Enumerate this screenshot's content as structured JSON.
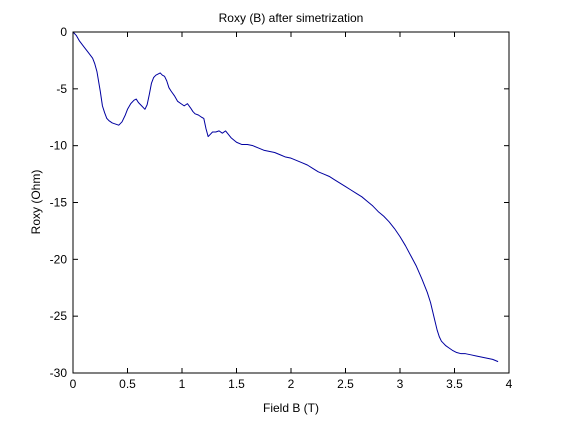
{
  "chart_data": {
    "type": "line",
    "title": "Roxy (B) after simetrization",
    "xlabel": "Field B (T)",
    "ylabel": "Roxy (Ohm)",
    "xlim": [
      0,
      4
    ],
    "ylim": [
      -30,
      0
    ],
    "x_ticks": [
      0,
      0.5,
      1,
      1.5,
      2,
      2.5,
      3,
      3.5,
      4
    ],
    "y_ticks": [
      0,
      -5,
      -10,
      -15,
      -20,
      -25,
      -30
    ],
    "x_tick_labels": [
      "0",
      "0.5",
      "1",
      "1.5",
      "2",
      "2.5",
      "3",
      "3.5",
      "4"
    ],
    "y_tick_labels": [
      "0",
      "-5",
      "-10",
      "-15",
      "-20",
      "-25",
      "-30"
    ],
    "grid": false,
    "legend": "none",
    "line_color": "#0000a0",
    "series": [
      {
        "x": [
          0,
          0.03,
          0.06,
          0.1,
          0.14,
          0.18,
          0.2,
          0.22,
          0.25,
          0.27,
          0.29,
          0.31,
          0.33,
          0.36,
          0.39,
          0.42,
          0.45,
          0.48,
          0.5,
          0.53,
          0.56,
          0.58,
          0.6,
          0.63,
          0.66,
          0.68,
          0.7,
          0.72,
          0.74,
          0.76,
          0.78,
          0.8,
          0.82,
          0.84,
          0.86,
          0.88,
          0.9,
          0.93,
          0.96,
          0.99,
          1.02,
          1.05,
          1.08,
          1.1,
          1.12,
          1.15,
          1.18,
          1.2,
          1.22,
          1.24,
          1.26,
          1.28,
          1.31,
          1.34,
          1.37,
          1.4,
          1.45,
          1.5,
          1.55,
          1.6,
          1.65,
          1.7,
          1.75,
          1.8,
          1.85,
          1.9,
          1.95,
          2.0,
          2.05,
          2.1,
          2.15,
          2.2,
          2.25,
          2.3,
          2.35,
          2.4,
          2.45,
          2.5,
          2.55,
          2.6,
          2.65,
          2.7,
          2.75,
          2.8,
          2.85,
          2.9,
          2.95,
          3.0,
          3.05,
          3.1,
          3.15,
          3.2,
          3.25,
          3.28,
          3.3,
          3.32,
          3.34,
          3.36,
          3.38,
          3.4,
          3.42,
          3.45,
          3.48,
          3.52,
          3.56,
          3.6,
          3.65,
          3.7,
          3.75,
          3.8,
          3.85,
          3.9
        ],
        "y": [
          0,
          -0.3,
          -0.8,
          -1.3,
          -1.8,
          -2.3,
          -2.8,
          -3.5,
          -5.2,
          -6.5,
          -7.1,
          -7.6,
          -7.8,
          -8.0,
          -8.1,
          -8.2,
          -7.9,
          -7.3,
          -6.8,
          -6.3,
          -6.0,
          -5.9,
          -6.2,
          -6.5,
          -6.8,
          -6.4,
          -5.5,
          -4.5,
          -4.0,
          -3.8,
          -3.7,
          -3.6,
          -3.8,
          -3.9,
          -4.3,
          -4.9,
          -5.2,
          -5.6,
          -6.1,
          -6.3,
          -6.5,
          -6.3,
          -6.7,
          -7.0,
          -7.2,
          -7.3,
          -7.5,
          -7.6,
          -8.5,
          -9.2,
          -9.0,
          -8.8,
          -8.8,
          -8.7,
          -8.9,
          -8.7,
          -9.3,
          -9.7,
          -9.9,
          -9.9,
          -10.0,
          -10.2,
          -10.4,
          -10.5,
          -10.6,
          -10.8,
          -11.0,
          -11.1,
          -11.3,
          -11.5,
          -11.7,
          -12.0,
          -12.3,
          -12.5,
          -12.7,
          -13.0,
          -13.3,
          -13.6,
          -13.9,
          -14.2,
          -14.5,
          -14.9,
          -15.3,
          -15.8,
          -16.2,
          -16.7,
          -17.3,
          -18.0,
          -18.8,
          -19.7,
          -20.6,
          -21.7,
          -22.9,
          -23.8,
          -24.6,
          -25.4,
          -26.2,
          -26.8,
          -27.2,
          -27.4,
          -27.6,
          -27.8,
          -28.0,
          -28.2,
          -28.3,
          -28.3,
          -28.4,
          -28.5,
          -28.6,
          -28.7,
          -28.8,
          -29.0
        ]
      }
    ]
  }
}
